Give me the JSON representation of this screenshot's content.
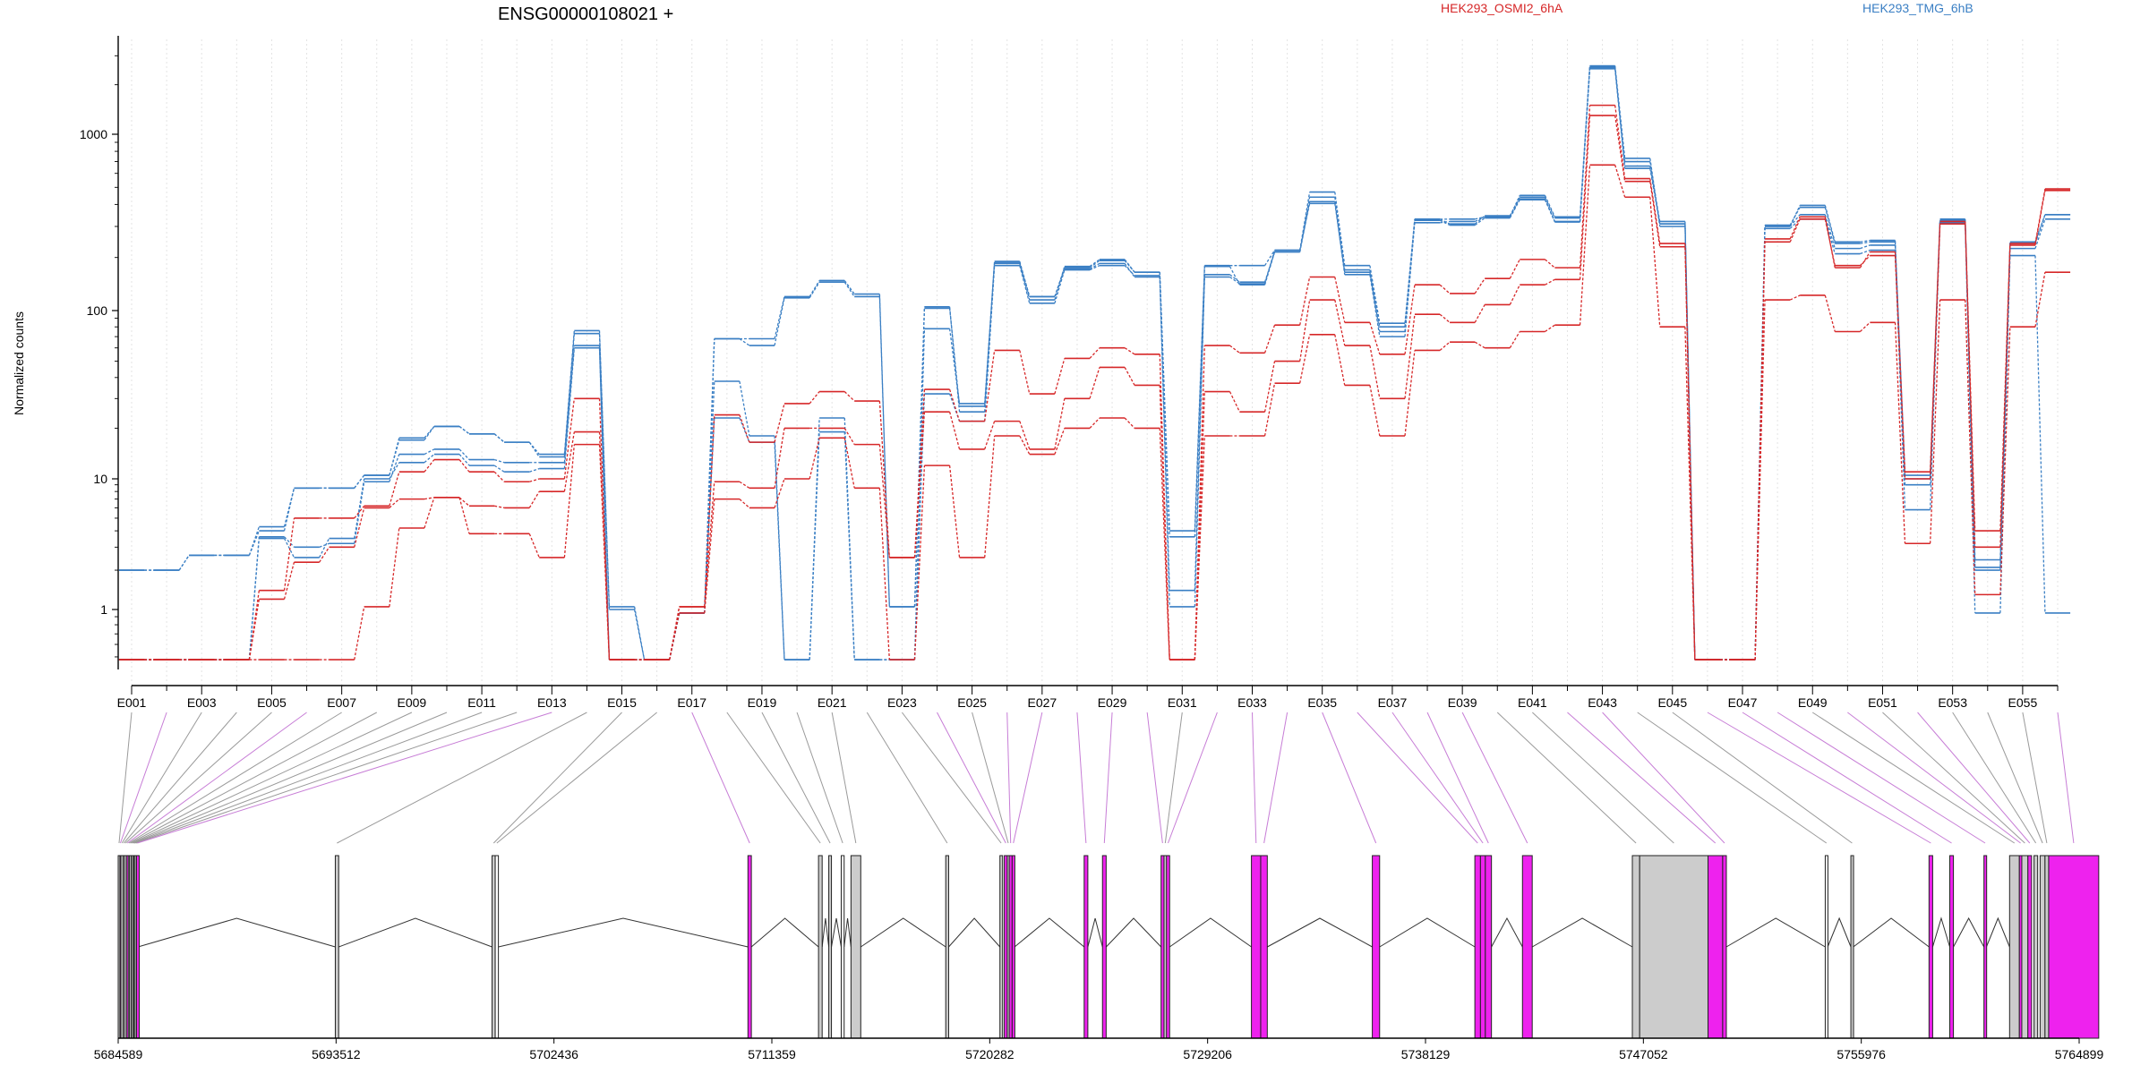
{
  "chart_data": {
    "type": "line",
    "title": "ENSG00000108021 +",
    "ylabel": "Normalized counts",
    "y_scale": "log",
    "y_ticks": [
      1,
      10,
      100,
      1000
    ],
    "ylim": [
      0.45,
      3500
    ],
    "grid": "vertical dotted lines at each exon",
    "legend": [
      {
        "name": "HEK293_OSMI2_6hA",
        "color": "#d62728",
        "position": "top"
      },
      {
        "name": "HEK293_TMG_6hB",
        "color": "#3a7fc4",
        "position": "top-right"
      }
    ],
    "x_tick_labels": [
      "E001",
      "E003",
      "E005",
      "E007",
      "E009",
      "E011",
      "E013",
      "E015",
      "E017",
      "E019",
      "E021",
      "E023",
      "E025",
      "E027",
      "E029",
      "E031",
      "E033",
      "E035",
      "E037",
      "E039",
      "E041",
      "E043",
      "E045",
      "E047",
      "E049",
      "E051",
      "E053",
      "E055"
    ],
    "exon_count": 56,
    "genomic_axis": {
      "ticks": [
        "5684589",
        "5693512",
        "5702436",
        "5711359",
        "5720282",
        "5729206",
        "5738129",
        "5747052",
        "5755976",
        "5764899"
      ],
      "start": 5684589,
      "end": 5764899
    },
    "series": [
      {
        "group": "HEK293_TMG_6hB",
        "color": "#3a7fc4",
        "values": [
          2,
          2,
          2.6,
          2.6,
          4.3,
          8.5,
          8.5,
          10.5,
          17.5,
          20.5,
          18.5,
          16.5,
          14,
          76,
          1.05,
          0.48,
          0.95,
          68,
          68,
          120,
          148,
          124,
          1.05,
          105,
          25,
          185,
          115,
          178,
          195,
          165,
          4,
          180,
          180,
          220,
          470,
          180,
          84,
          330,
          330,
          340,
          450,
          340,
          2600,
          730,
          300,
          0.48,
          0.48,
          300,
          395,
          245,
          250,
          10.5,
          320,
          2.4,
          240,
          350
        ]
      },
      {
        "group": "HEK293_TMG_6hB",
        "color": "#3a7fc4",
        "values": [
          2,
          2,
          2.6,
          2.6,
          4,
          8.5,
          8.5,
          10.5,
          17,
          20.5,
          18.5,
          16.5,
          13.5,
          73,
          1,
          0.48,
          0.95,
          68,
          62,
          118,
          145,
          120,
          1.05,
          103,
          27,
          188,
          120,
          175,
          192,
          165,
          3.6,
          178,
          140,
          215,
          440,
          170,
          80,
          330,
          310,
          345,
          440,
          335,
          2600,
          700,
          310,
          0.48,
          0.48,
          305,
          385,
          240,
          245,
          10,
          330,
          2.1,
          245,
          350
        ]
      },
      {
        "group": "HEK293_TMG_6hB",
        "color": "#3a7fc4",
        "values": [
          0.48,
          0.48,
          0.48,
          0.48,
          3.6,
          3,
          3.2,
          9.5,
          14,
          15,
          13,
          12.5,
          12.5,
          62,
          0.48,
          0.48,
          0.95,
          38,
          18,
          0.48,
          23,
          0.48,
          0.48,
          78,
          28,
          190,
          120,
          172,
          185,
          155,
          1.4,
          160,
          145,
          215,
          415,
          160,
          70,
          315,
          320,
          340,
          430,
          320,
          2550,
          660,
          320,
          0.48,
          0.48,
          300,
          350,
          225,
          235,
          9,
          325,
          2,
          225,
          330
        ]
      },
      {
        "group": "HEK293_TMG_6hB",
        "color": "#3a7fc4",
        "values": [
          0.48,
          0.48,
          0.48,
          0.48,
          3.5,
          2.5,
          3.5,
          10,
          12.5,
          14,
          12,
          11,
          11.5,
          60,
          0.48,
          0.48,
          0.95,
          23,
          16.5,
          0.48,
          19,
          0.48,
          0.48,
          32,
          22,
          180,
          110,
          170,
          180,
          158,
          1.05,
          155,
          142,
          220,
          405,
          165,
          75,
          325,
          305,
          335,
          425,
          318,
          2500,
          640,
          310,
          0.48,
          0.48,
          292,
          330,
          210,
          220,
          5.8,
          315,
          0.95,
          205,
          0.95
        ]
      },
      {
        "group": "HEK293_OSMI2_6hA",
        "color": "#d62728",
        "values": [
          0.48,
          0.48,
          0.48,
          0.48,
          1.4,
          5,
          5,
          6.2,
          11,
          13,
          11,
          9.5,
          10,
          30,
          0.48,
          0.48,
          1.05,
          24,
          16.5,
          28,
          33,
          29,
          2.5,
          34,
          22,
          58,
          32,
          52,
          60,
          55,
          0.48,
          62,
          56,
          82,
          155,
          85,
          55,
          140,
          125,
          152,
          195,
          175,
          1500,
          560,
          240,
          0.48,
          0.48,
          255,
          340,
          175,
          215,
          11,
          320,
          4,
          240,
          490
        ]
      },
      {
        "group": "HEK293_OSMI2_6hA",
        "color": "#d62728",
        "values": [
          0.48,
          0.48,
          0.48,
          0.48,
          1.2,
          2.3,
          3,
          6,
          7,
          7.2,
          6.2,
          6,
          8,
          19,
          0.48,
          0.48,
          1.05,
          9.5,
          8.5,
          20,
          20,
          16,
          2.5,
          25,
          15,
          22,
          15,
          30,
          46,
          36,
          0.48,
          33,
          25,
          50,
          115,
          62,
          30,
          95,
          85,
          108,
          140,
          150,
          1300,
          540,
          230,
          0.48,
          0.48,
          245,
          330,
          180,
          205,
          10,
          310,
          3,
          235,
          480
        ]
      },
      {
        "group": "HEK293_OSMI2_6hA",
        "color": "#d62728",
        "values": [
          0.48,
          0.48,
          0.48,
          0.48,
          0.48,
          0.48,
          0.48,
          1.05,
          4.2,
          7.2,
          3.8,
          3.8,
          2.5,
          16,
          0.48,
          0.48,
          0.95,
          7,
          6,
          10,
          17.5,
          8.5,
          0.48,
          12,
          2.5,
          18,
          14,
          20,
          23,
          20,
          0.48,
          18,
          18,
          37,
          72,
          36,
          18,
          58,
          65,
          60,
          75,
          82,
          670,
          440,
          80,
          0.48,
          0.48,
          115,
          122,
          75,
          85,
          3.2,
          115,
          1.3,
          80,
          165
        ]
      }
    ],
    "exons": [
      {
        "start": 5684589,
        "end": 5684660,
        "type": "gray"
      },
      {
        "start": 5684660,
        "end": 5684700,
        "type": "magenta"
      },
      {
        "start": 5684700,
        "end": 5684790,
        "type": "gray"
      },
      {
        "start": 5684790,
        "end": 5684850,
        "type": "gray"
      },
      {
        "start": 5684850,
        "end": 5684930,
        "type": "gray"
      },
      {
        "start": 5684930,
        "end": 5685000,
        "type": "magenta"
      },
      {
        "start": 5685000,
        "end": 5685050,
        "type": "gray"
      },
      {
        "start": 5685050,
        "end": 5685120,
        "type": "gray"
      },
      {
        "start": 5685120,
        "end": 5685180,
        "type": "gray"
      },
      {
        "start": 5685180,
        "end": 5685230,
        "type": "gray"
      },
      {
        "start": 5685230,
        "end": 5685280,
        "type": "gray"
      },
      {
        "start": 5685280,
        "end": 5685340,
        "type": "gray"
      },
      {
        "start": 5685340,
        "end": 5685400,
        "type": "magenta"
      },
      {
        "start": 5693480,
        "end": 5693620,
        "type": "gray"
      },
      {
        "start": 5699900,
        "end": 5700030,
        "type": "gray"
      },
      {
        "start": 5700030,
        "end": 5700160,
        "type": "white"
      },
      {
        "start": 5710380,
        "end": 5710520,
        "type": "magenta"
      },
      {
        "start": 5713270,
        "end": 5713420,
        "type": "gray"
      },
      {
        "start": 5713690,
        "end": 5713800,
        "type": "gray"
      },
      {
        "start": 5714200,
        "end": 5714320,
        "type": "white"
      },
      {
        "start": 5714600,
        "end": 5715000,
        "type": "gray"
      },
      {
        "start": 5718480,
        "end": 5718600,
        "type": "gray"
      },
      {
        "start": 5720700,
        "end": 5720800,
        "type": "gray"
      },
      {
        "start": 5720880,
        "end": 5721000,
        "type": "magenta"
      },
      {
        "start": 5721000,
        "end": 5721080,
        "type": "gray"
      },
      {
        "start": 5721080,
        "end": 5721200,
        "type": "magenta"
      },
      {
        "start": 5721200,
        "end": 5721300,
        "type": "magenta"
      },
      {
        "start": 5724150,
        "end": 5724300,
        "type": "magenta"
      },
      {
        "start": 5724900,
        "end": 5725050,
        "type": "magenta"
      },
      {
        "start": 5727300,
        "end": 5727420,
        "type": "magenta"
      },
      {
        "start": 5727420,
        "end": 5727520,
        "type": "gray"
      },
      {
        "start": 5727520,
        "end": 5727650,
        "type": "magenta"
      },
      {
        "start": 5731000,
        "end": 5731380,
        "type": "magenta"
      },
      {
        "start": 5731380,
        "end": 5731650,
        "type": "magenta"
      },
      {
        "start": 5735950,
        "end": 5736250,
        "type": "magenta"
      },
      {
        "start": 5740150,
        "end": 5740380,
        "type": "magenta"
      },
      {
        "start": 5740380,
        "end": 5740580,
        "type": "magenta"
      },
      {
        "start": 5740580,
        "end": 5740830,
        "type": "magenta"
      },
      {
        "start": 5742100,
        "end": 5742500,
        "type": "magenta"
      },
      {
        "start": 5746600,
        "end": 5746900,
        "type": "gray"
      },
      {
        "start": 5746900,
        "end": 5749700,
        "type": "gray"
      },
      {
        "start": 5749700,
        "end": 5750300,
        "type": "magenta"
      },
      {
        "start": 5750300,
        "end": 5750450,
        "type": "magenta"
      },
      {
        "start": 5754500,
        "end": 5754600,
        "type": "white"
      },
      {
        "start": 5755550,
        "end": 5755650,
        "type": "gray"
      },
      {
        "start": 5758750,
        "end": 5758900,
        "type": "magenta"
      },
      {
        "start": 5759600,
        "end": 5759750,
        "type": "magenta"
      },
      {
        "start": 5761000,
        "end": 5761100,
        "type": "magenta"
      },
      {
        "start": 5762050,
        "end": 5762450,
        "type": "gray"
      },
      {
        "start": 5762450,
        "end": 5762550,
        "type": "magenta"
      },
      {
        "start": 5762550,
        "end": 5762800,
        "type": "gray"
      },
      {
        "start": 5762800,
        "end": 5762950,
        "type": "magenta"
      },
      {
        "start": 5763050,
        "end": 5763200,
        "type": "gray"
      },
      {
        "start": 5763300,
        "end": 5763500,
        "type": "gray"
      },
      {
        "start": 5763500,
        "end": 5763650,
        "type": "gray"
      },
      {
        "start": 5763650,
        "end": 5765700,
        "type": "magenta"
      }
    ]
  }
}
